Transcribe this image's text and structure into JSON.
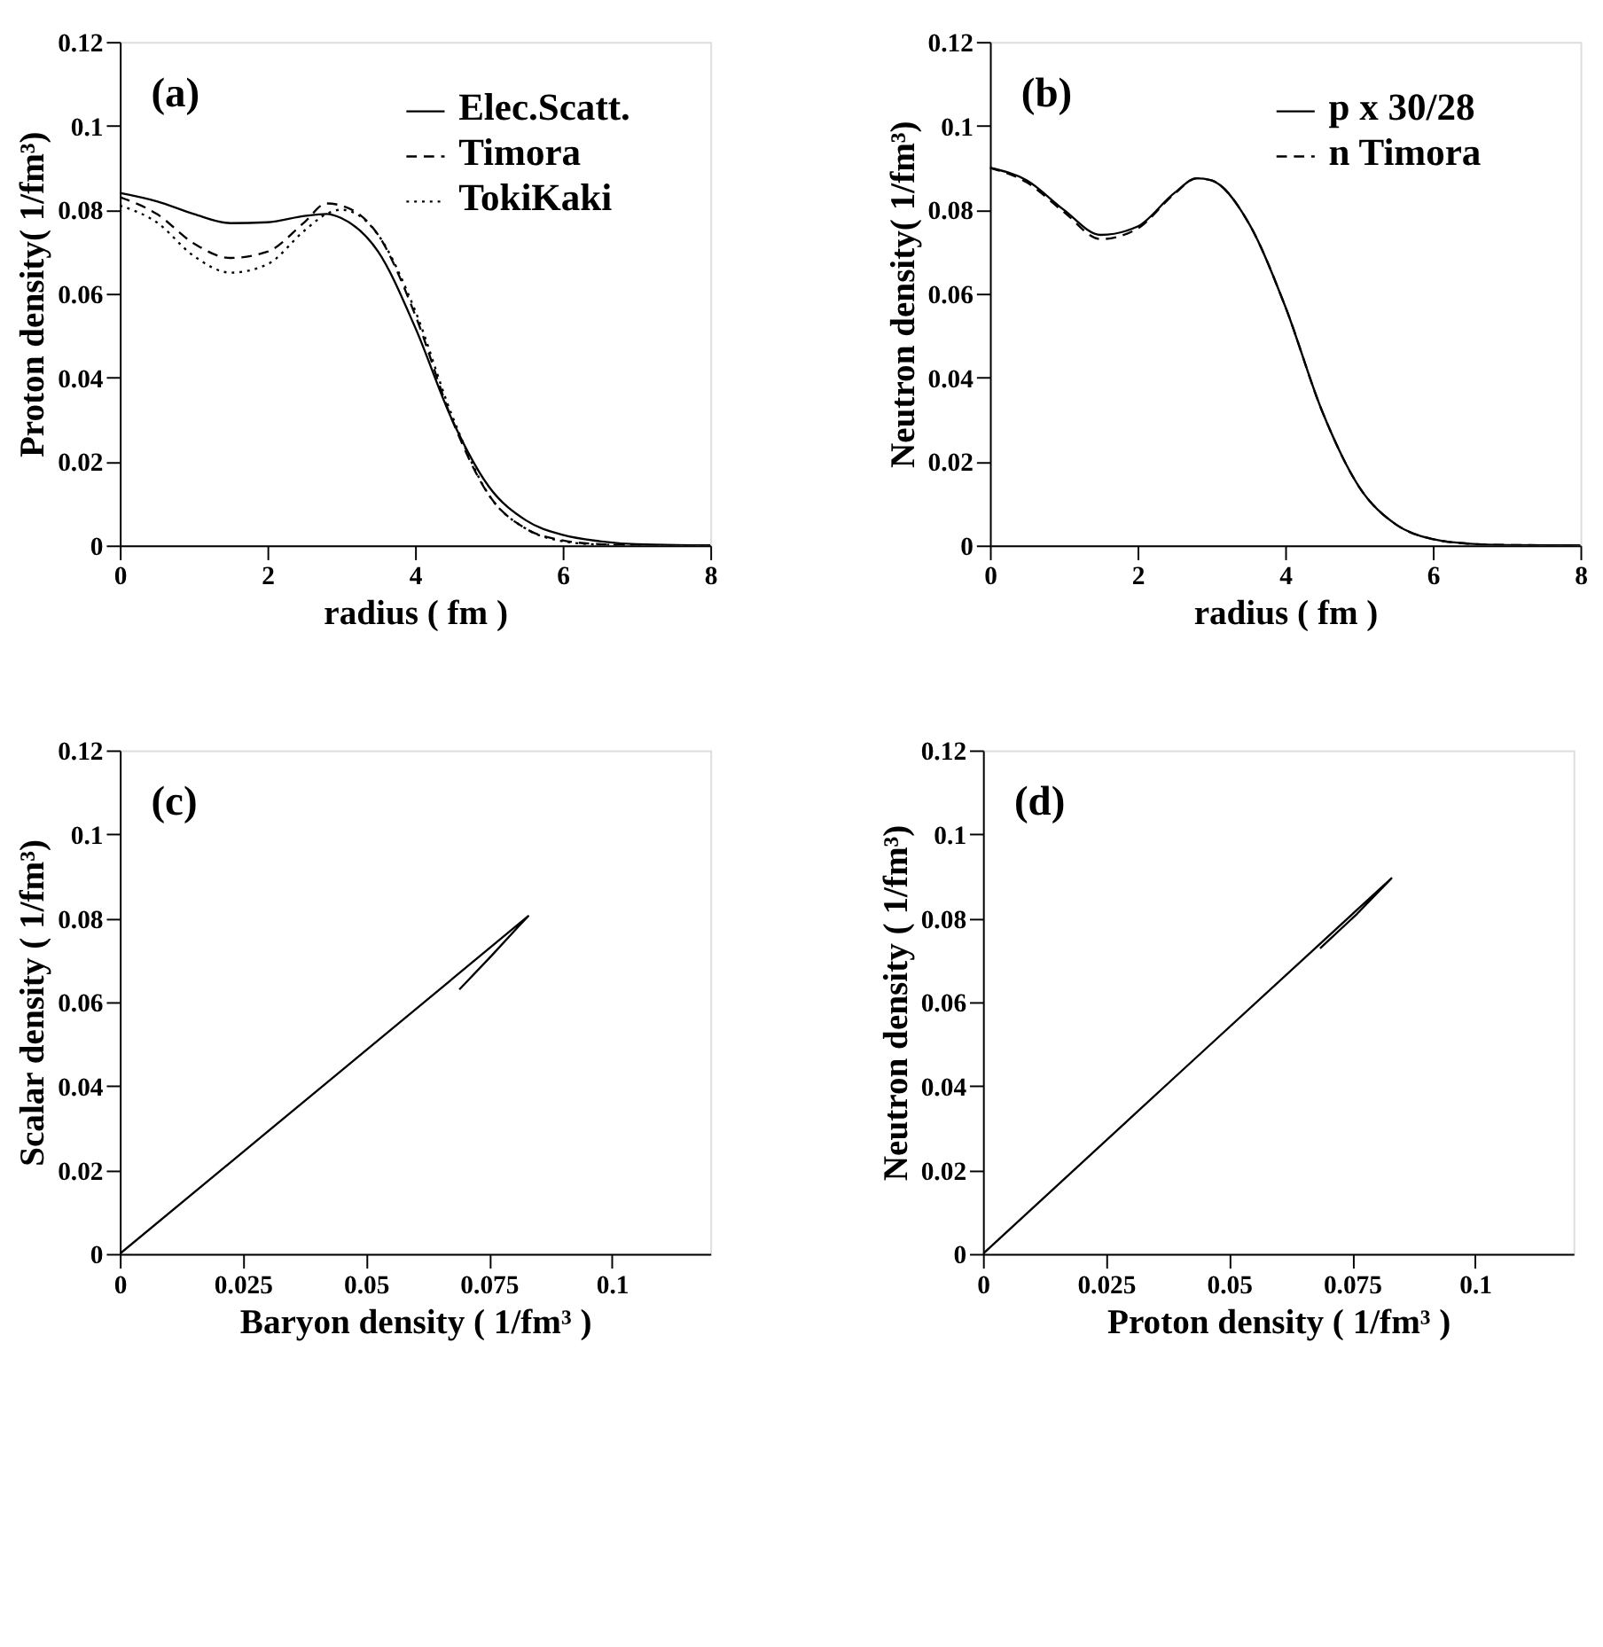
{
  "chart_data": [
    {
      "type": "line",
      "xlabel": "radius ( fm )",
      "ylabel": "Proton density( 1/fm³)",
      "annotations": [
        "(a)"
      ],
      "xlim": [
        0,
        8
      ],
      "xticks": [
        0,
        2,
        4,
        6,
        8
      ],
      "ylim": [
        0,
        0.12
      ],
      "yticks": [
        0,
        0.02,
        0.04,
        0.06,
        0.08,
        0.1,
        0.12
      ],
      "grid": false,
      "legend": "top right",
      "x": [
        0,
        0.5,
        1,
        1.5,
        2,
        2.5,
        2.8,
        3,
        3.5,
        4,
        4.5,
        5,
        5.5,
        6,
        6.5,
        7,
        8
      ],
      "series": [
        {
          "name": "Elec.Scatt.",
          "color": "#000000",
          "line_style": "solid",
          "values": [
            0.084,
            0.082,
            0.079,
            0.0768,
            0.077,
            0.0785,
            0.079,
            0.078,
            0.07,
            0.052,
            0.03,
            0.014,
            0.006,
            0.0025,
            0.001,
            0.0003,
            0
          ]
        },
        {
          "name": "Timora",
          "color": "#000000",
          "line_style": "dashed",
          "values": [
            0.083,
            0.079,
            0.072,
            0.0685,
            0.07,
            0.077,
            0.0815,
            0.081,
            0.074,
            0.055,
            0.03,
            0.012,
            0.004,
            0.0012,
            0.0003,
            0,
            0
          ]
        },
        {
          "name": "TokiKaki",
          "color": "#000000",
          "line_style": "dotted",
          "values": [
            0.081,
            0.077,
            0.069,
            0.065,
            0.067,
            0.075,
            0.079,
            0.08,
            0.074,
            0.056,
            0.031,
            0.012,
            0.004,
            0.001,
            0.0002,
            0,
            0
          ]
        }
      ]
    },
    {
      "type": "line",
      "xlabel": "radius ( fm )",
      "ylabel": "Neutron density( 1/fm³)",
      "annotations": [
        "(b)"
      ],
      "xlim": [
        0,
        8
      ],
      "xticks": [
        0,
        2,
        4,
        6,
        8
      ],
      "ylim": [
        0,
        0.12
      ],
      "yticks": [
        0,
        0.02,
        0.04,
        0.06,
        0.08,
        0.1,
        0.12
      ],
      "grid": false,
      "legend": "top right",
      "x": [
        0,
        0.5,
        1,
        1.5,
        2,
        2.5,
        2.8,
        3,
        3.5,
        4,
        4.5,
        5,
        5.5,
        6,
        6.5,
        7,
        8
      ],
      "series": [
        {
          "name": "p x 30/28",
          "color": "#000000",
          "line_style": "solid",
          "values": [
            0.09,
            0.087,
            0.08,
            0.074,
            0.076,
            0.084,
            0.0875,
            0.087,
            0.077,
            0.057,
            0.032,
            0.014,
            0.005,
            0.0015,
            0.0004,
            0.0001,
            0
          ]
        },
        {
          "name": "n Timora",
          "color": "#000000",
          "line_style": "dashed",
          "values": [
            0.09,
            0.0865,
            0.0795,
            0.073,
            0.0755,
            0.0838,
            0.0875,
            0.087,
            0.077,
            0.057,
            0.032,
            0.014,
            0.005,
            0.0015,
            0.0004,
            0.0001,
            0
          ]
        }
      ]
    },
    {
      "type": "line",
      "xlabel": "Baryon density ( 1/fm³ )",
      "ylabel": "Scalar density ( 1/fm³)",
      "annotations": [
        "(c)"
      ],
      "xlim": [
        0,
        0.12
      ],
      "xticks": [
        0,
        0.025,
        0.05,
        0.075,
        0.1
      ],
      "ylim": [
        0,
        0.12
      ],
      "yticks": [
        0,
        0.02,
        0.04,
        0.06,
        0.08,
        0.1,
        0.12
      ],
      "grid": false,
      "series": [
        {
          "color": "#000000",
          "line_style": "solid",
          "x": [
            0,
            0.04,
            0.083,
            0.081,
            0.0755,
            0.069
          ],
          "values": [
            0,
            0.0388,
            0.0805,
            0.078,
            0.071,
            0.063
          ]
        }
      ]
    },
    {
      "type": "line",
      "xlabel": "Proton density ( 1/fm³ )",
      "ylabel": "Neutron density ( 1/fm³)",
      "annotations": [
        "(d)"
      ],
      "xlim": [
        0,
        0.12
      ],
      "xticks": [
        0,
        0.025,
        0.05,
        0.075,
        0.1
      ],
      "ylim": [
        0,
        0.12
      ],
      "yticks": [
        0,
        0.02,
        0.04,
        0.06,
        0.08,
        0.1,
        0.12
      ],
      "grid": false,
      "series": [
        {
          "color": "#000000",
          "line_style": "solid",
          "x": [
            0,
            0.04,
            0.083,
            0.076,
            0.0685
          ],
          "values": [
            0,
            0.0432,
            0.0895,
            0.081,
            0.0728
          ]
        }
      ]
    }
  ]
}
